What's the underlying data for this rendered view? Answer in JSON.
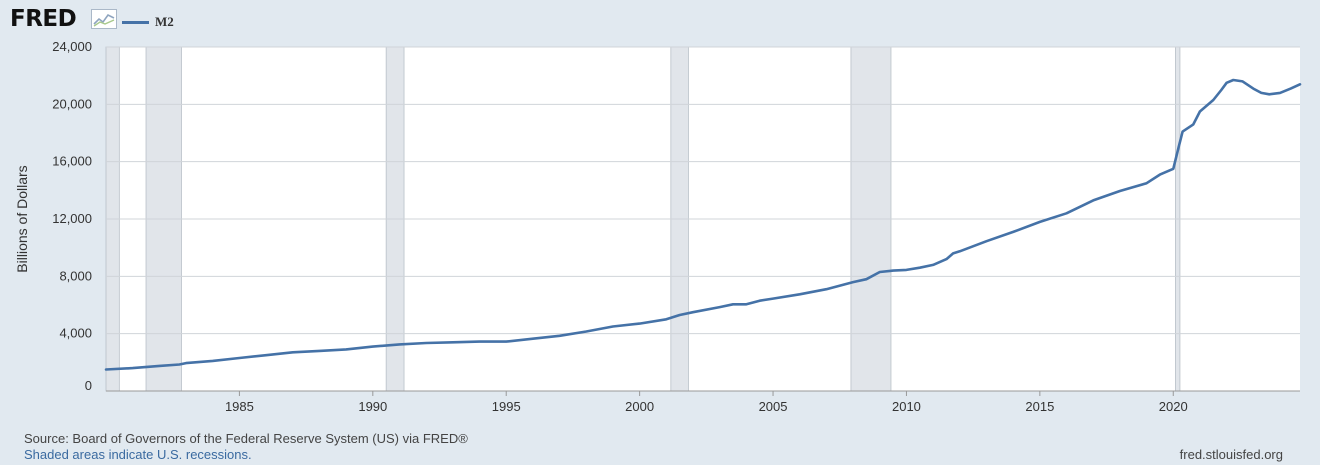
{
  "header": {
    "logo_text": "FRED",
    "logo_icon": "trend-chart-icon"
  },
  "chart_data": {
    "type": "line",
    "title": "",
    "ylabel": "Billions of Dollars",
    "xlabel": "",
    "xlim": [
      1980.0,
      2024.75
    ],
    "ylim": [
      0,
      24000
    ],
    "grid": true,
    "legend_position": "top-left",
    "yticks": [
      0,
      4000,
      8000,
      12000,
      16000,
      20000,
      24000
    ],
    "ytick_labels": [
      "0",
      "4,000",
      "8,000",
      "12,000",
      "16,000",
      "20,000",
      "24,000"
    ],
    "xticks": [
      1985,
      1990,
      1995,
      2000,
      2005,
      2010,
      2015,
      2020
    ],
    "xtick_labels": [
      "1985",
      "1990",
      "1995",
      "2000",
      "2005",
      "2010",
      "2015",
      "2020"
    ],
    "recessions": [
      {
        "start": 1980.0,
        "end": 1980.5
      },
      {
        "start": 1981.5,
        "end": 1982.83
      },
      {
        "start": 1990.5,
        "end": 1991.17
      },
      {
        "start": 2001.17,
        "end": 2001.83
      },
      {
        "start": 2007.92,
        "end": 2009.42
      },
      {
        "start": 2020.08,
        "end": 2020.25
      }
    ],
    "series": [
      {
        "name": "M2",
        "color": "#4572a7",
        "points": [
          [
            1980.0,
            1500
          ],
          [
            1981.0,
            1600
          ],
          [
            1982.0,
            1750
          ],
          [
            1982.75,
            1850
          ],
          [
            1983.0,
            1950
          ],
          [
            1984.0,
            2100
          ],
          [
            1985.0,
            2300
          ],
          [
            1986.0,
            2500
          ],
          [
            1987.0,
            2700
          ],
          [
            1988.0,
            2800
          ],
          [
            1989.0,
            2900
          ],
          [
            1990.0,
            3100
          ],
          [
            1991.0,
            3250
          ],
          [
            1992.0,
            3350
          ],
          [
            1993.0,
            3400
          ],
          [
            1994.0,
            3450
          ],
          [
            1995.0,
            3450
          ],
          [
            1996.0,
            3650
          ],
          [
            1997.0,
            3850
          ],
          [
            1998.0,
            4150
          ],
          [
            1999.0,
            4500
          ],
          [
            2000.0,
            4700
          ],
          [
            2001.0,
            5000
          ],
          [
            2001.5,
            5300
          ],
          [
            2002.0,
            5500
          ],
          [
            2003.0,
            5850
          ],
          [
            2003.5,
            6050
          ],
          [
            2004.0,
            6050
          ],
          [
            2004.5,
            6300
          ],
          [
            2005.0,
            6450
          ],
          [
            2006.0,
            6750
          ],
          [
            2007.0,
            7100
          ],
          [
            2008.0,
            7600
          ],
          [
            2008.5,
            7800
          ],
          [
            2009.0,
            8300
          ],
          [
            2009.5,
            8400
          ],
          [
            2010.0,
            8450
          ],
          [
            2010.5,
            8600
          ],
          [
            2011.0,
            8800
          ],
          [
            2011.5,
            9200
          ],
          [
            2011.75,
            9600
          ],
          [
            2012.0,
            9750
          ],
          [
            2013.0,
            10450
          ],
          [
            2014.0,
            11100
          ],
          [
            2015.0,
            11800
          ],
          [
            2016.0,
            12400
          ],
          [
            2017.0,
            13300
          ],
          [
            2018.0,
            13950
          ],
          [
            2019.0,
            14500
          ],
          [
            2019.5,
            15100
          ],
          [
            2020.0,
            15500
          ],
          [
            2020.2,
            17000
          ],
          [
            2020.35,
            18100
          ],
          [
            2020.75,
            18600
          ],
          [
            2021.0,
            19500
          ],
          [
            2021.5,
            20300
          ],
          [
            2021.8,
            21000
          ],
          [
            2022.0,
            21500
          ],
          [
            2022.25,
            21700
          ],
          [
            2022.6,
            21600
          ],
          [
            2023.0,
            21100
          ],
          [
            2023.3,
            20800
          ],
          [
            2023.6,
            20700
          ],
          [
            2024.0,
            20800
          ],
          [
            2024.4,
            21100
          ],
          [
            2024.75,
            21400
          ]
        ]
      }
    ]
  },
  "footer": {
    "source": "Source: Board of Governors of the Federal Reserve System (US) via FRED®",
    "recessions_note": "Shaded areas indicate U.S. recessions.",
    "url": "fred.stlouisfed.org"
  }
}
